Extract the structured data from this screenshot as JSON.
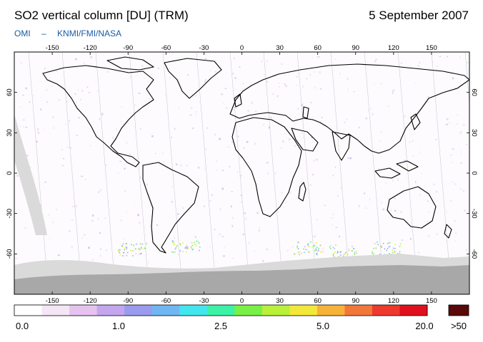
{
  "header": {
    "title": "SO2 vertical column [DU] (TRM)",
    "date": "5 September 2007",
    "credit_a": "OMI",
    "credit_sep": "–",
    "credit_b": "KNMI/FMI/NASA"
  },
  "axes": {
    "lon_ticks": [
      "-150",
      "-120",
      "-90",
      "-60",
      "-30",
      "0",
      "30",
      "60",
      "90",
      "120",
      "150"
    ],
    "lat_ticks": [
      "60",
      "30",
      "0",
      "-30",
      "-60"
    ]
  },
  "colorbar": {
    "labels": [
      "0.0",
      "1.0",
      "2.5",
      "5.0",
      "20.0"
    ],
    "overflow_label": ">50",
    "colors": [
      "#ffffff",
      "#f4e6f4",
      "#e6c3ef",
      "#c3a6ee",
      "#9a9aef",
      "#6fb6f2",
      "#41e6ee",
      "#3cf2a6",
      "#78f046",
      "#b8f03a",
      "#f2e83a",
      "#f6b23a",
      "#f2783a",
      "#ee3a2c",
      "#e0101e"
    ],
    "overflow_color": "#5a0808"
  },
  "colors": {
    "land_outline": "#000000",
    "no_data": "#dadada",
    "polar_night": "#a8a8a8"
  }
}
